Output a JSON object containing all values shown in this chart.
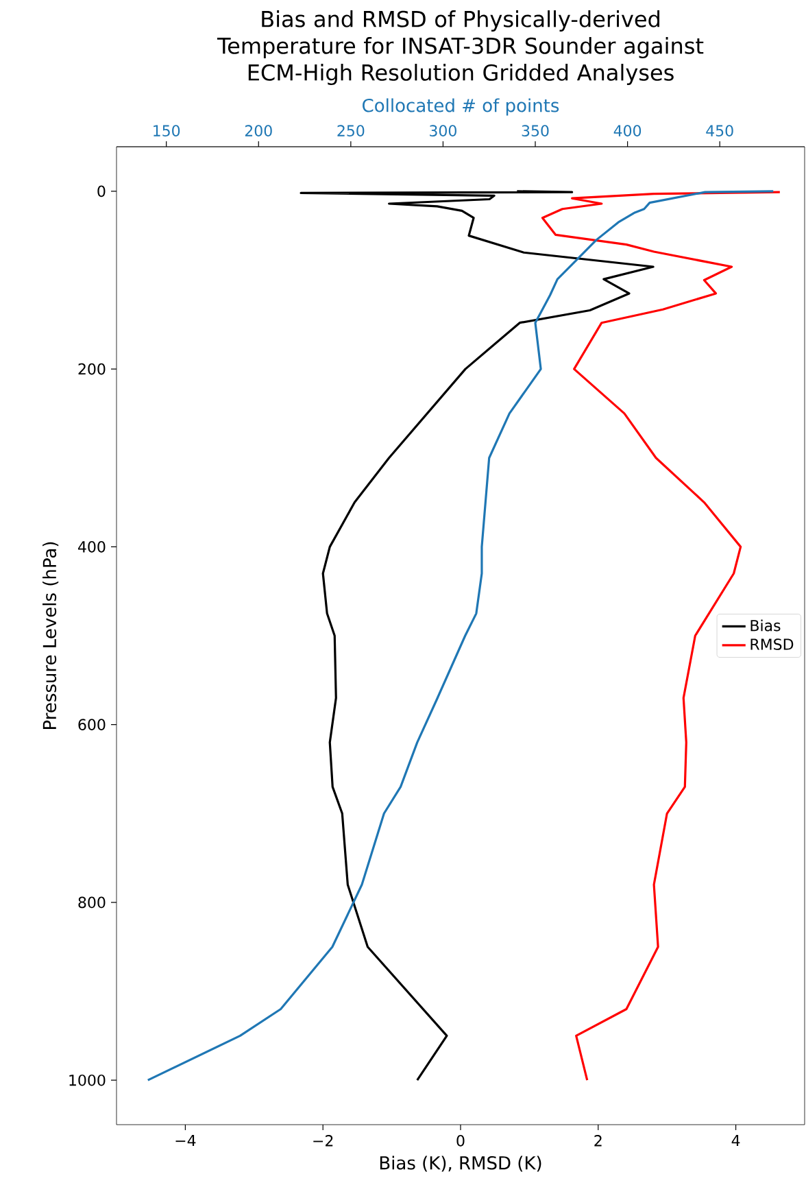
{
  "chart_data": {
    "type": "line",
    "title": "Bias and RMSD of Physically-derived Temperature for INSAT-3DR Sounder against ECM-High Resolution Gridded Analyses",
    "xlabel": "Bias (K), RMSD (K)",
    "ylabel": "Pressure Levels (hPa)",
    "x2label": "Collocated # of points",
    "xlim": [
      -5,
      5
    ],
    "xticks": [
      {
        "value": -4,
        "label": "−4"
      },
      {
        "value": -2,
        "label": "−2"
      },
      0,
      2,
      4
    ],
    "x2lim": [
      123,
      496
    ],
    "x2ticks": [
      150,
      200,
      250,
      300,
      350,
      400,
      450
    ],
    "ylim": [
      1050,
      -50
    ],
    "yticks": [
      0,
      200,
      400,
      600,
      800,
      1000
    ],
    "legend": "right",
    "series": [
      {
        "name": "Bias",
        "color": "#000000",
        "x": [
          0.82,
          1.62,
          -2.32,
          0.49,
          0.42,
          -1.04,
          -0.34,
          0.02,
          0.19,
          0.12,
          0.92,
          2.8,
          2.08,
          2.45,
          1.88,
          0.86,
          0.07,
          -1.04,
          -1.54,
          -1.9,
          -2.0,
          -1.94,
          -1.83,
          -1.81,
          -1.9,
          -1.86,
          -1.72,
          -1.64,
          -1.35,
          -0.2,
          -0.63
        ],
        "values": [
          0,
          1,
          2,
          5,
          9,
          14,
          17,
          22,
          30,
          50,
          69,
          85,
          99,
          115,
          134,
          148,
          200,
          300,
          350,
          400,
          430,
          475,
          500,
          570,
          620,
          670,
          700,
          780,
          850,
          950,
          1000
        ]
      },
      {
        "name": "RMSD",
        "color": "#ff0000",
        "x": [
          4.64,
          2.81,
          1.62,
          2.05,
          1.48,
          1.19,
          1.38,
          2.41,
          2.81,
          3.94,
          3.54,
          3.71,
          2.94,
          2.05,
          1.65,
          2.38,
          2.84,
          3.54,
          4.07,
          3.97,
          3.41,
          3.24,
          3.28,
          3.26,
          3.0,
          2.81,
          2.87,
          2.41,
          1.68,
          1.84
        ],
        "values": [
          1,
          3,
          8,
          14,
          20,
          30,
          49,
          60,
          68,
          85,
          100,
          115,
          133,
          148,
          200,
          250,
          300,
          350,
          400,
          430,
          500,
          570,
          620,
          670,
          700,
          780,
          850,
          920,
          950,
          1000
        ]
      },
      {
        "color": "#1f77b4",
        "axis": "x2",
        "x": [
          479,
          442,
          412,
          409,
          404,
          395,
          383,
          373,
          362,
          358,
          350,
          353,
          336,
          325,
          321,
          321,
          318,
          312,
          297,
          286,
          277,
          268,
          256,
          240,
          212,
          190,
          140
        ],
        "values": [
          0,
          1,
          13,
          20,
          24,
          35,
          55,
          76,
          99,
          117,
          148,
          200,
          250,
          300,
          400,
          430,
          475,
          500,
          570,
          620,
          670,
          700,
          780,
          850,
          920,
          950,
          1000
        ]
      }
    ]
  }
}
